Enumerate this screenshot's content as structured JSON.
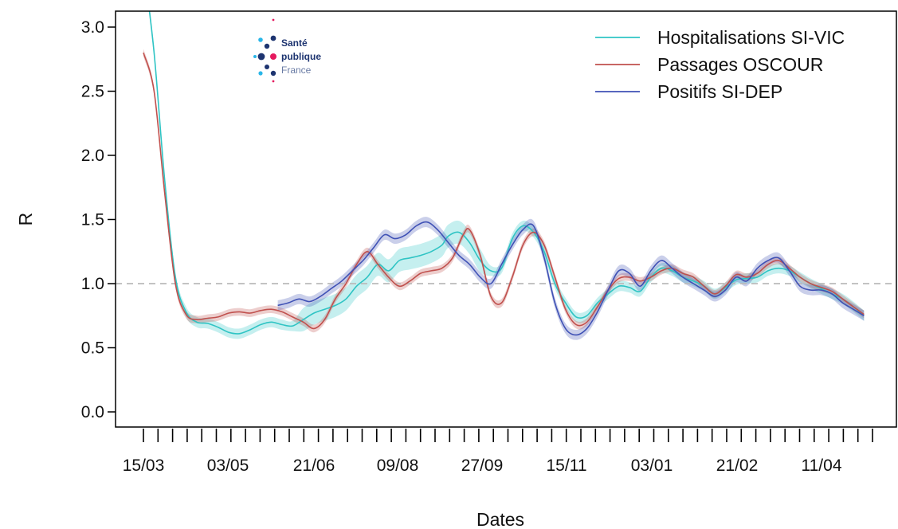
{
  "chart_data": {
    "type": "line",
    "title": "",
    "xlabel": "Dates",
    "ylabel": "R",
    "ylim": [
      0,
      3.1
    ],
    "yticks": [
      "0.0",
      "0.5",
      "1.0",
      "1.5",
      "2.0",
      "2.5",
      "3.0"
    ],
    "x_tick_labels": [
      "15/03",
      "03/05",
      "21/06",
      "09/08",
      "27/09",
      "15/11",
      "03/01",
      "21/02",
      "11/04"
    ],
    "x_date_range": [
      "15/03",
      "14/05"
    ],
    "reference_line": 1.0,
    "grid": false,
    "legend_position": "top-right",
    "colors": {
      "SI-VIC": "#2fc4c4",
      "OSCOUR": "#c0504d",
      "SI-DEP": "#3f51b5",
      "reference": "#bbbbbb"
    },
    "series": [
      {
        "name": "Hospitalisations SI-VIC",
        "color": "#2fc4c4",
        "points": [
          [
            0,
            3.5
          ],
          [
            5,
            2.8
          ],
          [
            10,
            1.8
          ],
          [
            15,
            1.05
          ],
          [
            20,
            0.78
          ],
          [
            25,
            0.7
          ],
          [
            30,
            0.69
          ],
          [
            35,
            0.66
          ],
          [
            40,
            0.62
          ],
          [
            45,
            0.61
          ],
          [
            50,
            0.64
          ],
          [
            55,
            0.68
          ],
          [
            60,
            0.7
          ],
          [
            65,
            0.68
          ],
          [
            70,
            0.67
          ],
          [
            75,
            0.72
          ],
          [
            80,
            0.77
          ],
          [
            85,
            0.8
          ],
          [
            90,
            0.83
          ],
          [
            95,
            0.88
          ],
          [
            100,
            0.98
          ],
          [
            105,
            1.05
          ],
          [
            110,
            1.15
          ],
          [
            115,
            1.1
          ],
          [
            120,
            1.18
          ],
          [
            125,
            1.2
          ],
          [
            130,
            1.22
          ],
          [
            135,
            1.25
          ],
          [
            140,
            1.3
          ],
          [
            143,
            1.37
          ],
          [
            148,
            1.4
          ],
          [
            153,
            1.32
          ],
          [
            158,
            1.18
          ],
          [
            163,
            1.1
          ],
          [
            168,
            1.12
          ],
          [
            173,
            1.35
          ],
          [
            178,
            1.45
          ],
          [
            183,
            1.4
          ],
          [
            188,
            1.25
          ],
          [
            193,
            1.0
          ],
          [
            198,
            0.85
          ],
          [
            203,
            0.74
          ],
          [
            208,
            0.75
          ],
          [
            213,
            0.85
          ],
          [
            218,
            0.92
          ],
          [
            223,
            0.98
          ],
          [
            228,
            0.97
          ],
          [
            233,
            0.94
          ],
          [
            238,
            1.05
          ],
          [
            243,
            1.12
          ],
          [
            248,
            1.1
          ],
          [
            253,
            1.05
          ],
          [
            258,
            1.02
          ],
          [
            263,
            0.98
          ],
          [
            268,
            0.92
          ],
          [
            273,
            0.97
          ],
          [
            278,
            1.03
          ],
          [
            283,
            1.04
          ],
          [
            288,
            1.05
          ],
          [
            293,
            1.1
          ],
          [
            298,
            1.12
          ],
          [
            303,
            1.1
          ],
          [
            308,
            1.05
          ],
          [
            313,
            1.0
          ],
          [
            318,
            0.96
          ],
          [
            323,
            0.92
          ],
          [
            328,
            0.88
          ],
          [
            333,
            0.82
          ],
          [
            338,
            0.75
          ]
        ]
      },
      {
        "name": "Passages OSCOUR",
        "color": "#c0504d",
        "points": [
          [
            0,
            2.8
          ],
          [
            5,
            2.5
          ],
          [
            10,
            1.7
          ],
          [
            15,
            1.0
          ],
          [
            20,
            0.76
          ],
          [
            25,
            0.72
          ],
          [
            30,
            0.73
          ],
          [
            35,
            0.74
          ],
          [
            40,
            0.77
          ],
          [
            45,
            0.78
          ],
          [
            50,
            0.77
          ],
          [
            55,
            0.79
          ],
          [
            60,
            0.8
          ],
          [
            65,
            0.78
          ],
          [
            70,
            0.74
          ],
          [
            75,
            0.7
          ],
          [
            80,
            0.65
          ],
          [
            85,
            0.72
          ],
          [
            90,
            0.88
          ],
          [
            95,
            1.0
          ],
          [
            100,
            1.15
          ],
          [
            105,
            1.25
          ],
          [
            110,
            1.15
          ],
          [
            115,
            1.05
          ],
          [
            120,
            0.98
          ],
          [
            125,
            1.02
          ],
          [
            130,
            1.08
          ],
          [
            135,
            1.1
          ],
          [
            140,
            1.12
          ],
          [
            145,
            1.2
          ],
          [
            150,
            1.38
          ],
          [
            153,
            1.42
          ],
          [
            158,
            1.22
          ],
          [
            163,
            0.9
          ],
          [
            168,
            0.85
          ],
          [
            173,
            1.05
          ],
          [
            178,
            1.3
          ],
          [
            183,
            1.4
          ],
          [
            188,
            1.3
          ],
          [
            193,
            1.05
          ],
          [
            198,
            0.8
          ],
          [
            203,
            0.68
          ],
          [
            208,
            0.7
          ],
          [
            213,
            0.82
          ],
          [
            218,
            0.95
          ],
          [
            223,
            1.04
          ],
          [
            228,
            1.05
          ],
          [
            233,
            1.02
          ],
          [
            238,
            1.05
          ],
          [
            243,
            1.1
          ],
          [
            248,
            1.12
          ],
          [
            253,
            1.08
          ],
          [
            258,
            1.05
          ],
          [
            263,
            0.98
          ],
          [
            268,
            0.92
          ],
          [
            273,
            0.98
          ],
          [
            278,
            1.07
          ],
          [
            283,
            1.05
          ],
          [
            288,
            1.08
          ],
          [
            293,
            1.15
          ],
          [
            298,
            1.18
          ],
          [
            303,
            1.12
          ],
          [
            308,
            1.05
          ],
          [
            313,
            1.0
          ],
          [
            318,
            0.97
          ],
          [
            323,
            0.94
          ],
          [
            328,
            0.88
          ],
          [
            333,
            0.82
          ],
          [
            338,
            0.76
          ]
        ]
      },
      {
        "name": "Positifs SI-DEP",
        "color": "#3f51b5",
        "points": [
          [
            63,
            0.83
          ],
          [
            68,
            0.85
          ],
          [
            73,
            0.88
          ],
          [
            78,
            0.86
          ],
          [
            83,
            0.9
          ],
          [
            88,
            0.96
          ],
          [
            93,
            1.02
          ],
          [
            98,
            1.1
          ],
          [
            103,
            1.18
          ],
          [
            108,
            1.28
          ],
          [
            113,
            1.38
          ],
          [
            118,
            1.35
          ],
          [
            123,
            1.38
          ],
          [
            128,
            1.45
          ],
          [
            133,
            1.48
          ],
          [
            138,
            1.42
          ],
          [
            143,
            1.32
          ],
          [
            148,
            1.22
          ],
          [
            153,
            1.15
          ],
          [
            158,
            1.05
          ],
          [
            163,
            1.0
          ],
          [
            168,
            1.15
          ],
          [
            173,
            1.3
          ],
          [
            178,
            1.42
          ],
          [
            183,
            1.45
          ],
          [
            188,
            1.2
          ],
          [
            193,
            0.85
          ],
          [
            198,
            0.65
          ],
          [
            203,
            0.6
          ],
          [
            208,
            0.65
          ],
          [
            213,
            0.78
          ],
          [
            218,
            0.95
          ],
          [
            223,
            1.1
          ],
          [
            228,
            1.08
          ],
          [
            233,
            0.98
          ],
          [
            238,
            1.1
          ],
          [
            243,
            1.18
          ],
          [
            248,
            1.12
          ],
          [
            253,
            1.05
          ],
          [
            258,
            1.0
          ],
          [
            263,
            0.95
          ],
          [
            268,
            0.9
          ],
          [
            273,
            0.95
          ],
          [
            278,
            1.05
          ],
          [
            283,
            1.02
          ],
          [
            288,
            1.12
          ],
          [
            293,
            1.18
          ],
          [
            298,
            1.2
          ],
          [
            303,
            1.1
          ],
          [
            308,
            0.98
          ],
          [
            313,
            0.95
          ],
          [
            318,
            0.95
          ],
          [
            323,
            0.92
          ],
          [
            328,
            0.85
          ],
          [
            333,
            0.8
          ],
          [
            338,
            0.75
          ]
        ]
      }
    ]
  },
  "legend": {
    "items": [
      {
        "label": "Hospitalisations SI-VIC",
        "color": "#2fc4c4"
      },
      {
        "label": "Passages OSCOUR",
        "color": "#c0504d"
      },
      {
        "label": "Positifs SI-DEP",
        "color": "#3f51b5"
      }
    ]
  },
  "logo": {
    "line1": "Santé",
    "line2": "publique",
    "line3": "France"
  }
}
